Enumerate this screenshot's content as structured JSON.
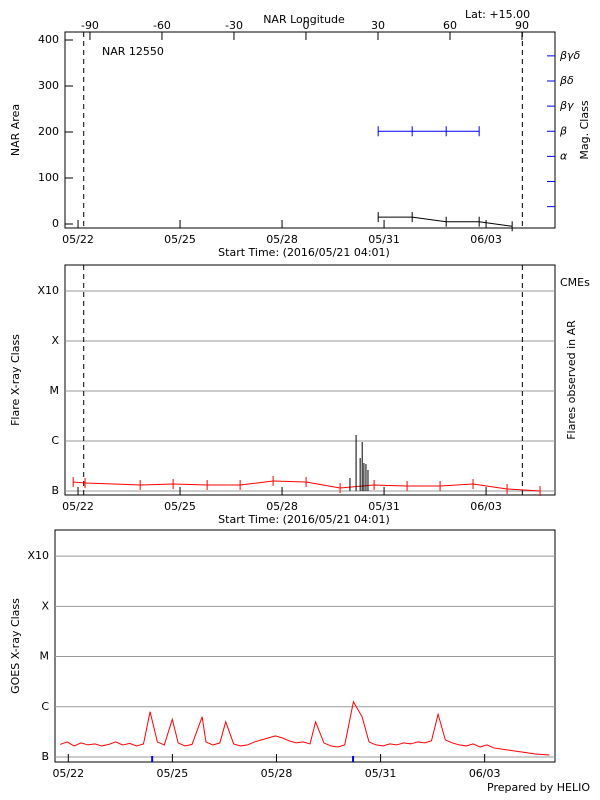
{
  "chart_data": [
    {
      "type": "line",
      "title": "NAR 12550",
      "annotation": "Lat: +15.00",
      "xlabel": "Start Time: (2016/05/21 04:01)",
      "x2label": "NAR Longitude",
      "ylabel": "NAR Area",
      "y2label": "Mag. Class",
      "y2color": "#0000ff",
      "xlim": [
        0.45,
        14.86
      ],
      "xticks": [
        {
          "value": 0.833,
          "label": "05/22"
        },
        {
          "value": 3.833,
          "label": "05/25"
        },
        {
          "value": 6.833,
          "label": "05/28"
        },
        {
          "value": 9.833,
          "label": "05/31"
        },
        {
          "value": 12.833,
          "label": "06/03"
        }
      ],
      "x2lim": [
        -100.4,
        103.75
      ],
      "x2ticks": [
        -90,
        -60,
        -30,
        0,
        30,
        60,
        90
      ],
      "ylim": [
        -8.7,
        417.4
      ],
      "yticks": [
        0,
        100,
        200,
        300,
        400
      ],
      "y2lim": [
        -0.85,
        6.95
      ],
      "y2ticks": [
        {
          "value": 0,
          "label": null
        },
        {
          "value": 1,
          "label": null
        },
        {
          "value": 2,
          "label": "α"
        },
        {
          "value": 3,
          "label": "β"
        },
        {
          "value": 4,
          "label": "βγ"
        },
        {
          "value": 5,
          "label": "βδ"
        },
        {
          "value": 6,
          "label": "βγδ"
        }
      ],
      "grid": false,
      "limb_lines": [
        1.0,
        13.9
      ],
      "series": [
        {
          "color": "#000000",
          "x": [
            9.66,
            10.66,
            11.66,
            12.63,
            13.6
          ],
          "values": [
            15,
            15,
            5,
            5,
            -5
          ]
        },
        {
          "color": "#0000ff",
          "axis": "y2",
          "x": [
            9.66,
            10.66,
            11.66,
            12.63
          ],
          "values": [
            3,
            3,
            3,
            3
          ]
        }
      ]
    },
    {
      "type": "line",
      "xlabel": "Start Time: (2016/05/21 04:01)",
      "ylabel": "Flare X-ray Class",
      "y2label": "Flares observed in AR",
      "y2color": "#000000",
      "cme_label": "CMEs",
      "cme_color": "#ff0000",
      "xlim": [
        0.45,
        14.86
      ],
      "xticks": [
        {
          "value": 0.833,
          "label": "05/22"
        },
        {
          "value": 3.833,
          "label": "05/25"
        },
        {
          "value": 6.833,
          "label": "05/28"
        },
        {
          "value": 9.833,
          "label": "05/31"
        },
        {
          "value": 12.833,
          "label": "06/03"
        }
      ],
      "ylim": [
        -0.08,
        4.52
      ],
      "yticks": [
        {
          "value": 0,
          "label": "B"
        },
        {
          "value": 1,
          "label": "C"
        },
        {
          "value": 2,
          "label": "M"
        },
        {
          "value": 3,
          "label": "X"
        },
        {
          "value": 4,
          "label": "X10"
        }
      ],
      "grid": true,
      "limb_lines": [
        1.0,
        13.9
      ],
      "series": [
        {
          "color": "#ff0000",
          "x": [
            0.69,
            1.04,
            2.66,
            3.63,
            4.63,
            5.6,
            6.57,
            7.54,
            8.54,
            9.54,
            10.51,
            11.48,
            12.45,
            13.45,
            14.42
          ],
          "values": [
            0.18,
            0.16,
            0.12,
            0.14,
            0.12,
            0.12,
            0.2,
            0.18,
            0.06,
            0.12,
            0.1,
            0.1,
            0.14,
            0.04,
            0
          ]
        },
        {
          "color": "#000000",
          "style": "spikes",
          "x": [
            8.83,
            9.01,
            9.13,
            9.19,
            9.24,
            9.3,
            9.36
          ],
          "values": [
            0.26,
            1.12,
            0.66,
            0.98,
            0.56,
            0.54,
            0.42
          ]
        }
      ]
    },
    {
      "type": "line",
      "ylabel": "GOES X-ray Class",
      "footer": "Prepared by HELIO",
      "xlim": [
        0.45,
        14.86
      ],
      "xticks": [
        {
          "value": 0.833,
          "label": "05/22"
        },
        {
          "value": 3.833,
          "label": "05/25"
        },
        {
          "value": 6.833,
          "label": "05/28"
        },
        {
          "value": 9.833,
          "label": "05/31"
        },
        {
          "value": 12.833,
          "label": "06/03"
        }
      ],
      "ylim": [
        -0.1,
        4.52
      ],
      "yticks": [
        {
          "value": 0,
          "label": "B"
        },
        {
          "value": 1,
          "label": "C"
        },
        {
          "value": 2,
          "label": "M"
        },
        {
          "value": 3,
          "label": "X"
        },
        {
          "value": 4,
          "label": "X10"
        }
      ],
      "grid": true,
      "markers": {
        "color": "#0000ff",
        "x": [
          3.25,
          9.04
        ]
      },
      "series": [
        {
          "color": "#ff0000",
          "style": "plain",
          "x": [
            0.6,
            0.8,
            1.0,
            1.2,
            1.4,
            1.6,
            1.8,
            2.0,
            2.2,
            2.4,
            2.6,
            2.8,
            3.0,
            3.19,
            3.4,
            3.6,
            3.83,
            4.0,
            4.2,
            4.4,
            4.69,
            4.8,
            5.0,
            5.2,
            5.37,
            5.6,
            5.8,
            6.0,
            6.2,
            6.4,
            6.6,
            6.8,
            7.0,
            7.2,
            7.4,
            7.6,
            7.8,
            7.96,
            8.2,
            8.4,
            8.6,
            8.8,
            9.05,
            9.3,
            9.5,
            9.7,
            9.9,
            10.1,
            10.3,
            10.5,
            10.7,
            10.9,
            11.1,
            11.3,
            11.49,
            11.7,
            11.9,
            12.1,
            12.3,
            12.5,
            12.7,
            12.9,
            13.1,
            13.3,
            13.5,
            13.7,
            13.9,
            14.1,
            14.3,
            14.5,
            14.7
          ],
          "values": [
            0.25,
            0.3,
            0.22,
            0.28,
            0.24,
            0.26,
            0.22,
            0.25,
            0.3,
            0.24,
            0.27,
            0.22,
            0.26,
            0.9,
            0.3,
            0.24,
            0.75,
            0.28,
            0.22,
            0.25,
            0.8,
            0.3,
            0.24,
            0.28,
            0.7,
            0.26,
            0.22,
            0.24,
            0.3,
            0.34,
            0.38,
            0.42,
            0.38,
            0.32,
            0.28,
            0.3,
            0.26,
            0.7,
            0.28,
            0.22,
            0.2,
            0.24,
            1.1,
            0.8,
            0.3,
            0.24,
            0.22,
            0.26,
            0.24,
            0.28,
            0.26,
            0.3,
            0.28,
            0.32,
            0.85,
            0.34,
            0.28,
            0.24,
            0.22,
            0.26,
            0.2,
            0.24,
            0.18,
            0.16,
            0.14,
            0.12,
            0.1,
            0.08,
            0.06,
            0.05,
            0.04
          ]
        }
      ]
    }
  ]
}
